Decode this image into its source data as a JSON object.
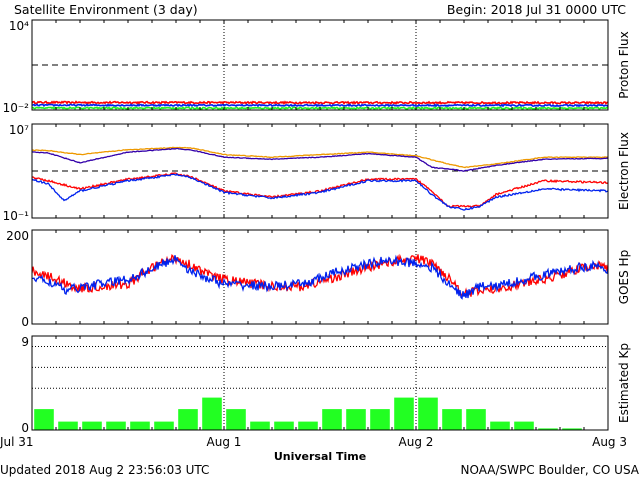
{
  "header": {
    "title": "Satellite Environment (3 day)",
    "begin": "Begin:  2018 Jul 31 0000 UTC"
  },
  "footer": {
    "updated": "Updated 2018 Aug  2 23:56:03 UTC",
    "credit": "NOAA/SWPC Boulder, CO USA"
  },
  "colors": {
    "red": "#ff0000",
    "blue": "#0022ee",
    "green": "#22ee22",
    "orange": "#ee9900",
    "purple": "#3300aa",
    "kp_bar": "#22ff22"
  },
  "chart_data": [
    {
      "type": "line",
      "panel": "proton",
      "ylabel": "Proton Flux",
      "scale": "log",
      "ylim": [
        0.01,
        10000
      ],
      "yticks": [
        "10⁴",
        "10⁻²"
      ],
      "xlim": [
        0,
        72
      ],
      "threshold": 10,
      "series": [
        {
          "color": "red",
          "x": [
            0,
            72
          ],
          "y": [
            0.032,
            0.03
          ],
          "noise": 0.06
        },
        {
          "color": "blue",
          "x": [
            0,
            72
          ],
          "y": [
            0.021,
            0.02
          ],
          "noise": 0.05
        },
        {
          "color": "green",
          "x": [
            0,
            72
          ],
          "y": [
            0.0135,
            0.0132
          ],
          "noise": 0.05
        }
      ]
    },
    {
      "type": "line",
      "panel": "electron",
      "ylabel": "Electron Flux",
      "scale": "log",
      "ylim": [
        0.1,
        10000000
      ],
      "yticks": [
        "10⁷",
        "10⁻¹"
      ],
      "xlim": [
        0,
        72
      ],
      "threshold": 1000,
      "series": [
        {
          "color": "orange",
          "x": [
            0,
            2,
            6,
            12,
            18,
            20,
            24,
            30,
            36,
            42,
            48,
            52,
            54,
            58,
            64,
            72
          ],
          "y": [
            60000,
            55000,
            25000,
            65000,
            100000,
            90000,
            25000,
            15000,
            25000,
            40000,
            20000,
            4000,
            2000,
            4000,
            15000,
            15000
          ],
          "noise": 0.03
        },
        {
          "color": "purple",
          "x": [
            0,
            2,
            6,
            12,
            18,
            20,
            24,
            30,
            36,
            42,
            48,
            50,
            52,
            54,
            58,
            64,
            72
          ],
          "y": [
            40000,
            35000,
            5000,
            40000,
            80000,
            60000,
            15000,
            10000,
            15000,
            30000,
            15000,
            2000,
            1500,
            1000,
            3000,
            10000,
            12000
          ],
          "noise": 0.03
        },
        {
          "color": "red",
          "x": [
            0,
            2,
            6,
            12,
            18,
            20,
            24,
            30,
            36,
            42,
            48,
            50,
            52,
            54,
            56,
            58,
            64,
            72
          ],
          "y": [
            300,
            150,
            30,
            200,
            600,
            300,
            20,
            6,
            20,
            200,
            200,
            20,
            1,
            1,
            1,
            10,
            150,
            100
          ],
          "noise": 0.08
        },
        {
          "color": "blue",
          "x": [
            0,
            2,
            4,
            6,
            12,
            18,
            20,
            24,
            30,
            36,
            42,
            48,
            50,
            52,
            54,
            56,
            58,
            64,
            72
          ],
          "y": [
            200,
            80,
            3,
            20,
            150,
            500,
            250,
            15,
            5,
            15,
            150,
            150,
            10,
            1,
            0.5,
            1,
            6,
            30,
            20
          ],
          "noise": 0.08
        }
      ]
    },
    {
      "type": "line",
      "panel": "hp",
      "ylabel": "GOES Hp",
      "scale": "linear",
      "ylim": [
        0,
        200
      ],
      "yticks": [
        "200",
        "0"
      ],
      "xlim": [
        0,
        72
      ],
      "series": [
        {
          "color": "red",
          "x": [
            0,
            3,
            6,
            12,
            16,
            18,
            20,
            22,
            24,
            30,
            34,
            38,
            44,
            48,
            50,
            52,
            54,
            56,
            58,
            64,
            70,
            72
          ],
          "y": [
            115,
            95,
            75,
            85,
            130,
            140,
            125,
            105,
            95,
            80,
            80,
            100,
            130,
            140,
            130,
            100,
            65,
            70,
            75,
            95,
            125,
            120
          ],
          "noise": 2.0
        },
        {
          "color": "blue",
          "x": [
            0,
            3,
            4,
            6,
            12,
            16,
            18,
            20,
            24,
            30,
            34,
            38,
            44,
            48,
            50,
            52,
            54,
            56,
            58,
            64,
            70,
            72
          ],
          "y": [
            100,
            85,
            70,
            78,
            95,
            125,
            140,
            110,
            85,
            80,
            85,
            110,
            135,
            130,
            120,
            85,
            60,
            80,
            80,
            105,
            125,
            110
          ],
          "noise": 2.0
        }
      ]
    },
    {
      "type": "bar",
      "panel": "kp",
      "ylabel": "Estimated Kp",
      "scale": "linear",
      "ylim": [
        0,
        9
      ],
      "yticks": [
        "9",
        "0"
      ],
      "xlim": [
        0,
        72
      ],
      "gridlines": [
        4,
        6,
        8
      ],
      "bar_width_hours": 2.45,
      "values": [
        2.0,
        0.8,
        0.8,
        0.8,
        0.8,
        0.8,
        2.0,
        3.1,
        2.0,
        0.8,
        0.8,
        0.8,
        2.0,
        2.0,
        2.0,
        3.1,
        3.1,
        2.0,
        2.0,
        0.8,
        0.8,
        0.15,
        0.15,
        0.0
      ]
    }
  ],
  "xaxis": {
    "title": "Universal Time",
    "labels": [
      {
        "hour": 0,
        "text": "Jul 31"
      },
      {
        "hour": 24,
        "text": "Aug 1"
      },
      {
        "hour": 48,
        "text": "Aug 2"
      },
      {
        "hour": 72,
        "text": "Aug 3"
      }
    ],
    "day_lines": [
      24,
      48
    ]
  }
}
